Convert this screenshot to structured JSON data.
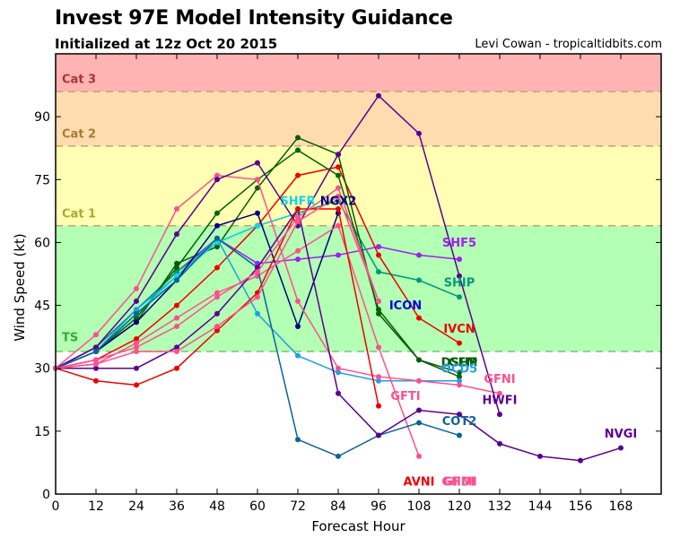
{
  "header": {
    "title": "Invest 97E Model Intensity Guidance",
    "subtitle": "Initialized at 12z Oct 20 2015",
    "credit": "Levi Cowan - tropicaltidbits.com"
  },
  "chart_data": {
    "type": "line",
    "title": "Invest 97E Model Intensity Guidance",
    "subtitle": "Initialized at 12z Oct 20 2015",
    "xlabel": "Forecast Hour",
    "ylabel": "Wind Speed (kt)",
    "xlim": [
      0,
      180
    ],
    "ylim": [
      0,
      105
    ],
    "xticks": [
      0,
      12,
      24,
      36,
      48,
      60,
      72,
      84,
      96,
      108,
      120,
      132,
      144,
      156,
      168
    ],
    "yticks": [
      0,
      15,
      30,
      45,
      60,
      75,
      90
    ],
    "grid": false,
    "bands": [
      {
        "name": "TS",
        "from": 34,
        "to": 64,
        "color": "#b3ffb3",
        "label_color": "#33aa33"
      },
      {
        "name": "Cat 1",
        "from": 64,
        "to": 83,
        "color": "#ffffb3",
        "label_color": "#aaaa33"
      },
      {
        "name": "Cat 2",
        "from": 83,
        "to": 96,
        "color": "#ffdcb0",
        "label_color": "#aa7a33"
      },
      {
        "name": "Cat 3",
        "from": 96,
        "to": 105,
        "color": "#ffb3b3",
        "label_color": "#aa3333"
      }
    ],
    "series": [
      {
        "name": "SHF5",
        "color": "#a020f0",
        "x": [
          0,
          12,
          24,
          36,
          48,
          60,
          72,
          84,
          96,
          108,
          120
        ],
        "y": [
          30,
          35,
          44,
          53,
          61,
          55,
          56,
          57,
          59,
          57,
          56
        ],
        "label_at": [
          120,
          59
        ]
      },
      {
        "name": "SHIP",
        "color": "#00997a",
        "x": [
          0,
          12,
          24,
          36,
          48,
          60,
          72,
          84,
          96,
          108,
          120
        ],
        "y": [
          30,
          35,
          44,
          53,
          60,
          64,
          67,
          70,
          53,
          51,
          47
        ],
        "label_at": [
          120,
          49.5
        ]
      },
      {
        "name": "ICON",
        "color": "#0000dd",
        "x": [],
        "y": [],
        "label_at": [
          104,
          44
        ]
      },
      {
        "name": "IVCN",
        "color": "#ee0000",
        "x": [
          0,
          12,
          24,
          36,
          48,
          60,
          72,
          84,
          96,
          108,
          120
        ],
        "y": [
          30,
          32,
          37,
          45,
          54,
          64,
          76,
          78,
          57,
          42,
          36
        ],
        "label_at": [
          120,
          38.5
        ]
      },
      {
        "name": "DSHP",
        "color": "#006400",
        "x": [
          0,
          12,
          24,
          36,
          48,
          60,
          72,
          84,
          96,
          108,
          120
        ],
        "y": [
          30,
          34,
          42,
          54,
          67,
          75,
          82,
          76,
          44,
          32,
          28
        ],
        "label_at": [
          120,
          30.5
        ]
      },
      {
        "name": "LGEM",
        "color": "#0a5a0a",
        "x": [
          0,
          12,
          24,
          36,
          48,
          60,
          72,
          84,
          96,
          108,
          120
        ],
        "y": [
          30,
          34,
          41,
          55,
          59,
          73,
          85,
          81,
          43,
          32,
          29
        ],
        "label_at": [
          120,
          30.5
        ]
      },
      {
        "name": "OCD5",
        "color": "#1ea0e6",
        "x": [
          0,
          12,
          24,
          36,
          48,
          60,
          72,
          84,
          96,
          108,
          120
        ],
        "y": [
          30,
          34,
          44,
          52,
          61,
          43,
          33,
          29,
          27,
          27,
          27
        ],
        "label_at": [
          120,
          29
        ]
      },
      {
        "name": "SHFR",
        "color": "#10d6e6",
        "x": [
          0,
          12,
          24,
          36,
          48,
          60,
          72
        ],
        "y": [
          30,
          34,
          43,
          52,
          60,
          64,
          67
        ],
        "label_at": [
          72,
          69
        ]
      },
      {
        "name": "NGX2",
        "color": "#000080",
        "x": [
          0,
          12,
          24,
          36,
          48,
          60,
          72,
          84
        ],
        "y": [
          30,
          34,
          41,
          51,
          64,
          67,
          40,
          67
        ],
        "label_at": [
          84,
          69
        ]
      },
      {
        "name": "GFNI",
        "color": "#ff4f8f",
        "x": [
          0,
          12,
          24,
          36,
          48,
          60,
          72,
          84,
          96,
          108,
          120,
          132
        ],
        "y": [
          30,
          38,
          49,
          68,
          76,
          75,
          46,
          30,
          28,
          27,
          26,
          24
        ],
        "label_at": [
          132,
          26.5
        ]
      },
      {
        "name": "HWFI",
        "color": "#5a0090",
        "x": [
          0,
          12,
          24,
          36,
          48,
          60,
          72,
          84,
          96,
          108,
          120,
          132
        ],
        "y": [
          30,
          35,
          46,
          62,
          75,
          79,
          64,
          81,
          95,
          86,
          52,
          19
        ],
        "label_at": [
          132,
          21.5
        ]
      },
      {
        "name": "GFTI",
        "color": "#ff4f8f",
        "x": [
          0,
          12,
          24,
          36,
          48,
          60,
          72,
          84,
          96,
          108
        ],
        "y": [
          30,
          31,
          36,
          42,
          48,
          52,
          58,
          64,
          35,
          9
        ],
        "label_at": [
          104,
          22.5
        ]
      },
      {
        "name": "COT2",
        "color": "#0a6496",
        "x": [
          0,
          12,
          24,
          36,
          48,
          60,
          72,
          84,
          96,
          108,
          120
        ],
        "y": [
          30,
          34,
          43,
          51,
          61,
          54,
          13,
          9,
          14,
          17,
          14
        ],
        "label_at": [
          120,
          16.5
        ]
      },
      {
        "name": "NVGI",
        "color": "#5a0090",
        "x": [
          0,
          12,
          24,
          36,
          48,
          60,
          72,
          84,
          96,
          108,
          120,
          132,
          144,
          156,
          168
        ],
        "y": [
          30,
          30,
          30,
          35,
          43,
          54,
          68,
          24,
          14,
          20,
          19,
          12,
          9,
          8,
          11
        ],
        "label_at": [
          168,
          13.5
        ]
      },
      {
        "name": "AVNI",
        "color": "#ee0000",
        "x": [
          0,
          12,
          24,
          36,
          48,
          60,
          72,
          84,
          96
        ],
        "y": [
          30,
          27,
          26,
          30,
          39,
          48,
          68,
          68,
          21
        ],
        "label_at": [
          108,
          2
        ]
      },
      {
        "name": "GFDI",
        "color": "#ff4f8f",
        "x": [
          0,
          12,
          24,
          36,
          48,
          60,
          72,
          84,
          96
        ],
        "y": [
          30,
          32,
          35,
          40,
          47,
          53,
          66,
          73,
          46
        ],
        "label_at": [
          120,
          2
        ]
      },
      {
        "name": "GHMI",
        "color": "#ff4f8f",
        "x": [
          0,
          12,
          24,
          36,
          48,
          60,
          72,
          84,
          96
        ],
        "y": [
          30,
          31,
          34,
          34,
          40,
          47,
          65,
          71,
          46
        ],
        "label_at": [
          120,
          2
        ]
      }
    ]
  }
}
